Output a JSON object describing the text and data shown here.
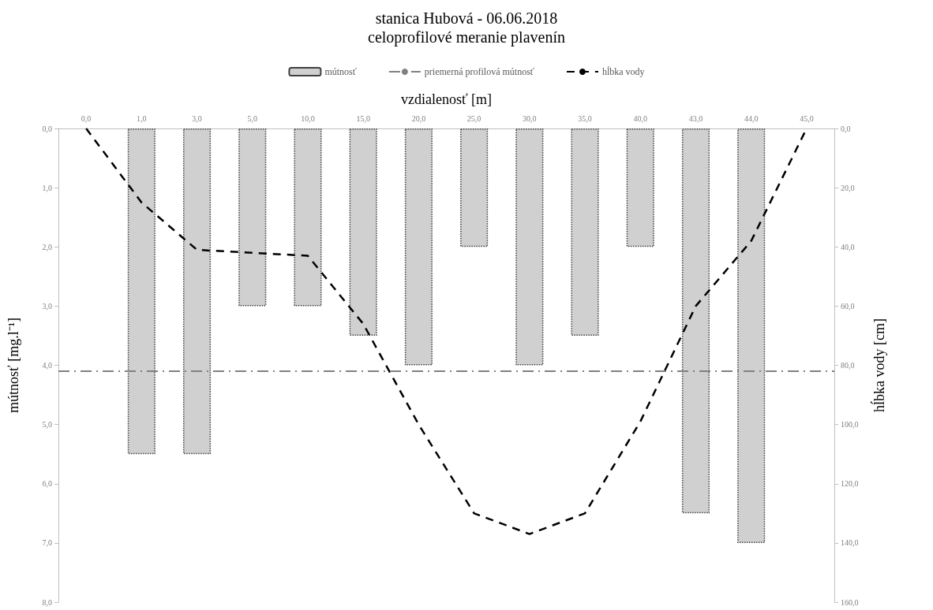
{
  "chart_data": {
    "type": "bar",
    "title": "stanica Hubová - 06.06.2018",
    "subtitle": "celoprofilové meranie plavenín",
    "xlabel": "vzdialenosť [m]",
    "ylabel": "mútnosť [mg.l⁻¹]",
    "y2label": "hĺbka vody [cm]",
    "categories": [
      "0,0",
      "1,0",
      "3,0",
      "5,0",
      "10,0",
      "15,0",
      "20,0",
      "25,0",
      "30,0",
      "35,0",
      "40,0",
      "43,0",
      "44,0",
      "45,0"
    ],
    "series": [
      {
        "name": "mútnosť",
        "color": "#d0d0d0",
        "values": [
          null,
          5.5,
          5.5,
          3,
          3,
          3.5,
          4,
          2,
          4,
          3.5,
          2,
          6.5,
          7,
          null
        ]
      },
      {
        "name": "hĺbka vody",
        "type": "line",
        "axis": "y2",
        "color": "#000000",
        "line_style": "dashed",
        "values": [
          0,
          25,
          41,
          42,
          43,
          66,
          100,
          130,
          137,
          130,
          99,
          60,
          38,
          0
        ]
      }
    ],
    "ref_lines": [
      {
        "axis": "y",
        "value": 4.1,
        "label": "priemerná profilová mútnosť",
        "color": "#808080",
        "line_style": "dashdot"
      }
    ],
    "ylim": [
      8,
      0
    ],
    "yticks": [
      {
        "value": 0,
        "label": "0,0"
      },
      {
        "value": 1,
        "label": "1,0"
      },
      {
        "value": 2,
        "label": "2,0"
      },
      {
        "value": 3,
        "label": "3,0"
      },
      {
        "value": 4,
        "label": "4,0"
      },
      {
        "value": 5,
        "label": "5,0"
      },
      {
        "value": 6,
        "label": "6,0"
      },
      {
        "value": 7,
        "label": "7,0"
      },
      {
        "value": 8,
        "label": "8,0"
      }
    ],
    "y2lim": [
      160,
      0
    ],
    "y2ticks": [
      {
        "value": 0,
        "label": "0,0"
      },
      {
        "value": 20,
        "label": "20,0"
      },
      {
        "value": 40,
        "label": "40,0"
      },
      {
        "value": 60,
        "label": "60,0"
      },
      {
        "value": 80,
        "label": "80,0"
      },
      {
        "value": 100,
        "label": "100,0"
      },
      {
        "value": 120,
        "label": "120,0"
      },
      {
        "value": 140,
        "label": "140,0"
      },
      {
        "value": 160,
        "label": "160,0"
      }
    ],
    "legend": "top",
    "grid": false,
    "marker": "none"
  }
}
